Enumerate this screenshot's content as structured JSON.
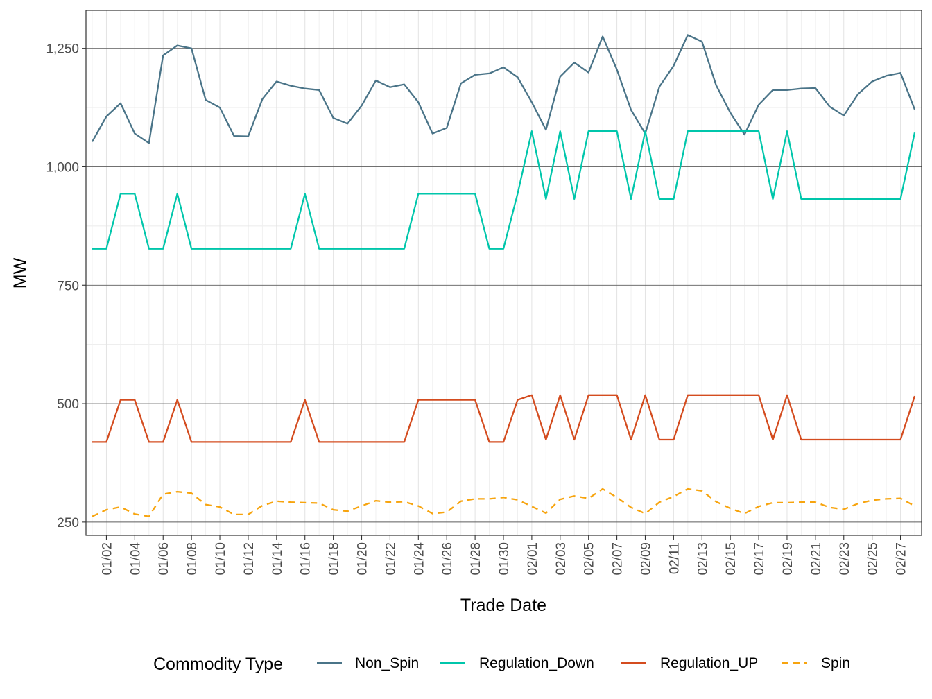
{
  "chart_data": {
    "type": "line",
    "xlabel": "Trade Date",
    "ylabel": "MW",
    "ylim": [
      222,
      1330
    ],
    "y_ticks": [
      250,
      500,
      750,
      1000,
      1250
    ],
    "y_tick_labels": [
      "250",
      "500",
      "750",
      "1,000",
      "1,250"
    ],
    "x_start": "01/01",
    "x_end": "02/28",
    "x_tick_labels": [
      "01/02",
      "01/04",
      "01/06",
      "01/08",
      "01/10",
      "01/12",
      "01/14",
      "01/16",
      "01/18",
      "01/20",
      "01/22",
      "01/24",
      "01/26",
      "01/28",
      "01/30",
      "02/01",
      "02/03",
      "02/05",
      "02/07",
      "02/09",
      "02/11",
      "02/13",
      "02/15",
      "02/17",
      "02/19",
      "02/21",
      "02/23",
      "02/25",
      "02/27"
    ],
    "grid": true,
    "legend": {
      "title": "Commodity Type",
      "position": "bottom"
    },
    "series": [
      {
        "name": "Non_Spin",
        "color": "#4a7488",
        "dash": "solid",
        "values": [
          1053,
          1106,
          1134,
          1070,
          1050,
          1235,
          1256,
          1250,
          1141,
          1125,
          1065,
          1064,
          1143,
          1180,
          1171,
          1165,
          1162,
          1103,
          1091,
          1129,
          1182,
          1168,
          1174,
          1136,
          1070,
          1082,
          1176,
          1194,
          1197,
          1210,
          1189,
          1136,
          1078,
          1190,
          1220,
          1199,
          1275,
          1205,
          1120,
          1070,
          1169,
          1213,
          1278,
          1264,
          1172,
          1114,
          1068,
          1131,
          1162,
          1162,
          1165,
          1166,
          1127,
          1108,
          1153,
          1180,
          1192,
          1198,
          1121
        ]
      },
      {
        "name": "Regulation_Down",
        "color": "#00c6ab",
        "dash": "solid",
        "values": [
          827,
          827,
          943,
          943,
          827,
          827,
          943,
          827,
          827,
          827,
          827,
          827,
          827,
          827,
          827,
          943,
          827,
          827,
          827,
          827,
          827,
          827,
          827,
          943,
          943,
          943,
          943,
          943,
          827,
          827,
          943,
          1075,
          932,
          1075,
          932,
          1075,
          1075,
          1075,
          932,
          1075,
          932,
          932,
          1075,
          1075,
          1075,
          1075,
          1075,
          1075,
          932,
          1075,
          932,
          932,
          932,
          932,
          932,
          932,
          932,
          932,
          1072
        ]
      },
      {
        "name": "Regulation_UP",
        "color": "#d44c1f",
        "dash": "solid",
        "values": [
          419,
          419,
          508,
          508,
          419,
          419,
          508,
          419,
          419,
          419,
          419,
          419,
          419,
          419,
          419,
          508,
          419,
          419,
          419,
          419,
          419,
          419,
          419,
          508,
          508,
          508,
          508,
          508,
          419,
          419,
          508,
          518,
          424,
          518,
          424,
          518,
          518,
          518,
          424,
          518,
          424,
          424,
          518,
          518,
          518,
          518,
          518,
          518,
          424,
          518,
          424,
          424,
          424,
          424,
          424,
          424,
          424,
          424,
          516
        ]
      },
      {
        "name": "Spin",
        "color": "#f7a40e",
        "dash": "dashed",
        "values": [
          262,
          276,
          282,
          267,
          262,
          309,
          314,
          311,
          287,
          282,
          266,
          266,
          285,
          294,
          292,
          291,
          290,
          276,
          273,
          284,
          295,
          292,
          293,
          284,
          268,
          271,
          294,
          299,
          299,
          302,
          297,
          283,
          269,
          298,
          305,
          300,
          320,
          302,
          281,
          268,
          292,
          304,
          320,
          316,
          293,
          279,
          268,
          283,
          291,
          291,
          292,
          292,
          281,
          277,
          289,
          296,
          299,
          300,
          284
        ]
      }
    ]
  }
}
